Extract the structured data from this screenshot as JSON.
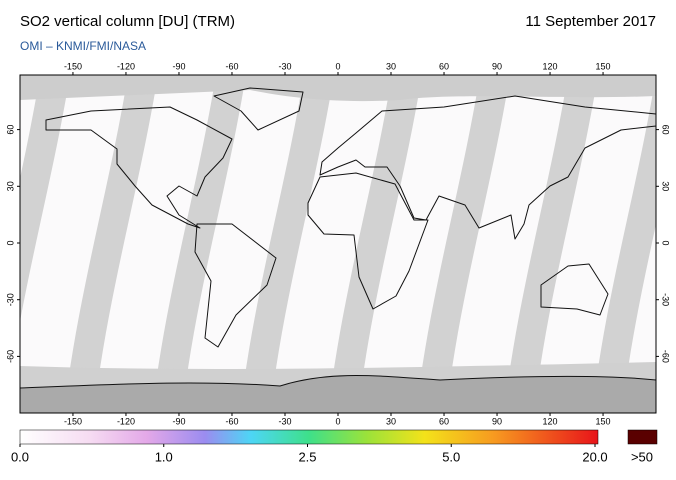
{
  "header": {
    "title": "SO2 vertical column [DU] (TRM)",
    "date": "11 September 2017",
    "credit": "OMI  –  KNMI/FMI/NASA"
  },
  "map": {
    "lon_ticks": [
      -150,
      -120,
      -90,
      -60,
      -30,
      0,
      30,
      60,
      90,
      120,
      150
    ],
    "lat_ticks": [
      -60,
      -30,
      0,
      30,
      60
    ]
  },
  "colorbar": {
    "ticks": [
      {
        "value": 0,
        "label": "0.0"
      },
      {
        "value": 1,
        "label": "1.0"
      },
      2.5,
      {
        "value": 5,
        "label": "5.0"
      },
      {
        "value": 20,
        "label": "20.0"
      }
    ],
    "overflow_label": ">50"
  }
}
